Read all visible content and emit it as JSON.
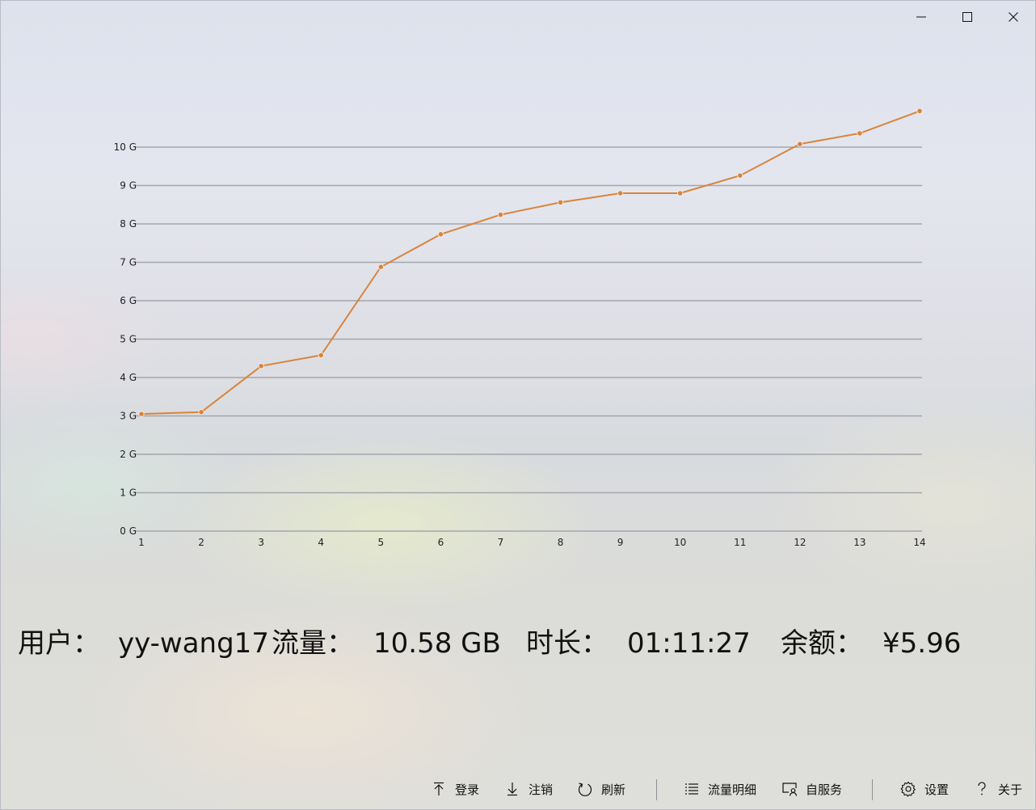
{
  "window": {
    "controls": [
      "minimize",
      "maximize",
      "close"
    ]
  },
  "chart_data": {
    "type": "line",
    "title": "",
    "xlabel": "",
    "ylabel": "",
    "x": [
      1,
      2,
      3,
      4,
      5,
      6,
      7,
      8,
      9,
      10,
      11,
      12,
      13,
      14
    ],
    "x_tick_labels": [
      "1",
      "2",
      "3",
      "4",
      "5",
      "6",
      "7",
      "8",
      "9",
      "10",
      "11",
      "12",
      "13",
      "14"
    ],
    "y_tick_labels": [
      "0 G",
      "1 G",
      "2 G",
      "3 G",
      "4 G",
      "5 G",
      "6 G",
      "7 G",
      "8 G",
      "9 G",
      "10 G"
    ],
    "y_ticks": [
      0,
      1,
      2,
      3,
      4,
      5,
      6,
      7,
      8,
      9,
      10
    ],
    "ylim": [
      0,
      10
    ],
    "grid": true,
    "series": [
      {
        "values": [
          3.05,
          3.1,
          4.3,
          4.58,
          6.88,
          7.73,
          8.24,
          8.56,
          8.8,
          8.8,
          9.26,
          10.08,
          10.36,
          10.94
        ],
        "color": "#d8843c"
      }
    ]
  },
  "stats": {
    "user_label": "用户：",
    "user_value": "yy-wang17",
    "traffic_label": "流量：",
    "traffic_value": "10.58 GB",
    "duration_label": "时长：",
    "duration_value": "01:11:27",
    "balance_label": "余额：",
    "balance_value": "¥5.96"
  },
  "toolbar": {
    "login_label": "登录",
    "logout_label": "注销",
    "refresh_label": "刷新",
    "detail_label": "流量明细",
    "selfservice_label": "自服务",
    "settings_label": "设置",
    "about_label": "关于"
  }
}
